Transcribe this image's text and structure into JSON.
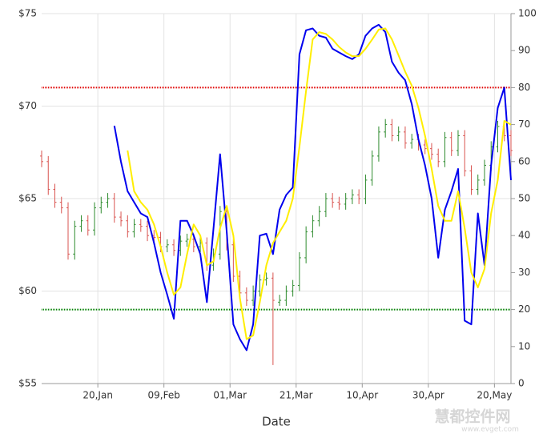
{
  "chart_data": {
    "type": "ohlc",
    "x_label": "Date",
    "x": [
      "01-03",
      "01-05",
      "01-07",
      "01-09",
      "01-11",
      "01-13",
      "01-15",
      "01-17",
      "01-19",
      "01-21",
      "01-23",
      "01-25",
      "01-27",
      "01-29",
      "01-31",
      "02-02",
      "02-04",
      "02-06",
      "02-08",
      "02-10",
      "02-12",
      "02-14",
      "02-16",
      "02-18",
      "02-20",
      "02-22",
      "02-24",
      "02-26",
      "02-28",
      "03-02",
      "03-04",
      "03-06",
      "03-08",
      "03-10",
      "03-12",
      "03-14",
      "03-16",
      "03-18",
      "03-20",
      "03-22",
      "03-24",
      "03-26",
      "03-28",
      "03-30",
      "04-01",
      "04-03",
      "04-05",
      "04-07",
      "04-09",
      "04-11",
      "04-13",
      "04-15",
      "04-17",
      "04-19",
      "04-21",
      "04-23",
      "04-25",
      "04-27",
      "04-29",
      "05-01",
      "05-03",
      "05-05",
      "05-07",
      "05-09",
      "05-11",
      "05-13",
      "05-15",
      "05-17",
      "05-19",
      "05-21",
      "05-23",
      "05-25"
    ],
    "ohlc": [
      [
        67.3,
        67.6,
        66.7,
        67.0
      ],
      [
        67.0,
        67.3,
        65.2,
        65.5
      ],
      [
        65.5,
        65.8,
        64.5,
        64.8
      ],
      [
        64.8,
        65.1,
        64.2,
        64.5
      ],
      [
        64.5,
        64.8,
        61.7,
        62.0
      ],
      [
        62.0,
        63.8,
        61.7,
        63.5
      ],
      [
        63.5,
        64.1,
        63.2,
        63.8
      ],
      [
        63.8,
        64.1,
        63.0,
        63.3
      ],
      [
        63.3,
        64.8,
        63.0,
        64.5
      ],
      [
        64.5,
        65.1,
        64.2,
        64.8
      ],
      [
        64.8,
        65.3,
        64.5,
        65.0
      ],
      [
        65.0,
        65.3,
        63.7,
        64.0
      ],
      [
        64.0,
        64.3,
        63.5,
        63.8
      ],
      [
        63.8,
        64.1,
        62.9,
        63.2
      ],
      [
        63.2,
        63.9,
        62.9,
        63.6
      ],
      [
        63.6,
        63.9,
        63.2,
        63.5
      ],
      [
        63.5,
        63.8,
        62.7,
        63.0
      ],
      [
        63.0,
        63.3,
        62.6,
        62.9
      ],
      [
        62.9,
        63.2,
        62.1,
        62.4
      ],
      [
        62.4,
        62.8,
        62.1,
        62.5
      ],
      [
        62.5,
        62.8,
        61.9,
        62.2
      ],
      [
        62.2,
        63.0,
        61.9,
        62.7
      ],
      [
        62.7,
        63.1,
        62.4,
        62.8
      ],
      [
        62.8,
        63.1,
        62.1,
        62.4
      ],
      [
        62.4,
        62.9,
        62.1,
        62.6
      ],
      [
        62.6,
        62.9,
        61.1,
        61.4
      ],
      [
        61.4,
        62.3,
        61.1,
        62.0
      ],
      [
        62.0,
        64.6,
        61.7,
        64.3
      ],
      [
        64.3,
        64.6,
        62.2,
        62.5
      ],
      [
        62.5,
        62.8,
        60.5,
        60.8
      ],
      [
        60.8,
        61.1,
        59.6,
        59.9
      ],
      [
        59.9,
        60.2,
        59.2,
        59.5
      ],
      [
        59.5,
        60.3,
        59.2,
        60.0
      ],
      [
        60.0,
        60.9,
        59.7,
        60.6
      ],
      [
        60.6,
        61.0,
        60.3,
        60.7
      ],
      [
        60.7,
        61.0,
        56.0,
        59.5
      ],
      [
        59.4,
        59.8,
        59.2,
        59.5
      ],
      [
        59.5,
        60.3,
        59.2,
        60.0
      ],
      [
        60.0,
        60.6,
        59.7,
        60.3
      ],
      [
        60.3,
        62.1,
        60.0,
        61.8
      ],
      [
        61.8,
        63.5,
        61.5,
        63.2
      ],
      [
        63.2,
        64.1,
        62.9,
        63.8
      ],
      [
        63.8,
        64.6,
        63.5,
        64.3
      ],
      [
        64.3,
        65.3,
        64.0,
        65.0
      ],
      [
        65.0,
        65.3,
        64.5,
        64.8
      ],
      [
        64.8,
        65.1,
        64.4,
        64.7
      ],
      [
        64.7,
        65.3,
        64.4,
        65.0
      ],
      [
        65.0,
        65.5,
        64.7,
        65.2
      ],
      [
        65.2,
        65.5,
        64.7,
        65.0
      ],
      [
        65.0,
        66.3,
        64.7,
        66.0
      ],
      [
        66.0,
        67.6,
        65.7,
        67.3
      ],
      [
        67.3,
        68.9,
        67.0,
        68.6
      ],
      [
        68.6,
        69.3,
        68.3,
        69.0
      ],
      [
        69.0,
        69.3,
        68.1,
        68.4
      ],
      [
        68.4,
        68.9,
        68.1,
        68.6
      ],
      [
        68.6,
        68.9,
        67.7,
        68.0
      ],
      [
        68.0,
        68.5,
        67.7,
        68.2
      ],
      [
        68.2,
        68.5,
        67.6,
        67.9
      ],
      [
        67.9,
        68.2,
        67.4,
        67.7
      ],
      [
        67.7,
        68.0,
        67.1,
        67.4
      ],
      [
        67.4,
        67.7,
        66.7,
        67.0
      ],
      [
        67.0,
        68.6,
        66.7,
        68.3
      ],
      [
        68.3,
        68.6,
        67.3,
        67.6
      ],
      [
        67.6,
        68.7,
        67.3,
        68.4
      ],
      [
        68.4,
        68.7,
        66.2,
        66.5
      ],
      [
        66.5,
        66.8,
        65.2,
        65.5
      ],
      [
        65.5,
        66.3,
        65.2,
        66.0
      ],
      [
        66.0,
        67.1,
        65.7,
        66.8
      ],
      [
        66.8,
        68.1,
        66.5,
        67.8
      ],
      [
        67.8,
        69.2,
        67.5,
        68.9
      ],
      [
        68.9,
        69.2,
        68.1,
        68.4
      ],
      [
        68.4,
        68.7,
        67.3,
        67.6
      ]
    ],
    "up_color": "#2e8b2e",
    "down_color": "#d9534f",
    "series": [
      {
        "color": "#0000ee",
        "axis": "y2",
        "values": [
          null,
          null,
          null,
          null,
          null,
          null,
          null,
          null,
          null,
          null,
          null,
          69.7,
          60,
          52,
          49,
          46,
          45,
          38,
          30,
          24,
          17.5,
          44,
          44,
          40,
          35,
          22,
          42,
          62,
          41,
          16,
          12,
          9,
          16,
          40,
          40.5,
          35,
          47,
          51,
          53,
          89,
          95.5,
          96,
          94,
          93.5,
          90.5,
          89.5,
          88.5,
          87.7,
          89,
          94,
          96,
          97,
          95,
          87,
          84,
          82,
          75.5,
          66,
          59,
          50,
          34,
          47,
          52,
          58,
          17,
          16,
          46,
          32,
          59,
          74.5,
          80,
          55
        ]
      },
      {
        "color": "#ffee00",
        "axis": "y2",
        "values": [
          null,
          null,
          null,
          null,
          null,
          null,
          null,
          null,
          null,
          null,
          null,
          null,
          null,
          63,
          52,
          49,
          47,
          43,
          37,
          30,
          24,
          26,
          35,
          43,
          40,
          32,
          33,
          42,
          48,
          40,
          23,
          12,
          13,
          22,
          32,
          38,
          41,
          44,
          50,
          64,
          79,
          93,
          95,
          94.5,
          93,
          91,
          89.5,
          88.5,
          88.5,
          90.5,
          93,
          95.7,
          96,
          93,
          88.7,
          84.3,
          80.5,
          74.5,
          67,
          58,
          48,
          44,
          44,
          52,
          42,
          30,
          26,
          31,
          46,
          55,
          71,
          70
        ]
      }
    ],
    "reference_lines": [
      {
        "value": 80,
        "color": "#e00000",
        "axis": "y2"
      },
      {
        "value": 20,
        "color": "#008000",
        "axis": "y2"
      }
    ],
    "xlim": [
      "01-03",
      "05-25"
    ],
    "xticks": [
      {
        "value": "01-20",
        "label": "20,Jan"
      },
      {
        "value": "02-09",
        "label": "09,Feb"
      },
      {
        "value": "03-01",
        "label": "01,Mar"
      },
      {
        "value": "03-21",
        "label": "21,Mar"
      },
      {
        "value": "04-10",
        "label": "10,Apr"
      },
      {
        "value": "04-30",
        "label": "30,Apr"
      },
      {
        "value": "05-20",
        "label": "20,May"
      }
    ],
    "ylim": [
      55,
      75
    ],
    "yticks": [
      {
        "value": 55,
        "label": "$55"
      },
      {
        "value": 60,
        "label": "$60"
      },
      {
        "value": 65,
        "label": "$65"
      },
      {
        "value": 70,
        "label": "$70"
      },
      {
        "value": 75,
        "label": "$75"
      }
    ],
    "y2lim": [
      0,
      100
    ],
    "y2ticks": [
      0,
      10,
      20,
      30,
      40,
      50,
      60,
      70,
      80,
      90,
      100
    ],
    "grid": true,
    "watermark": [
      "慧都控件网",
      "www.evget.com"
    ]
  }
}
